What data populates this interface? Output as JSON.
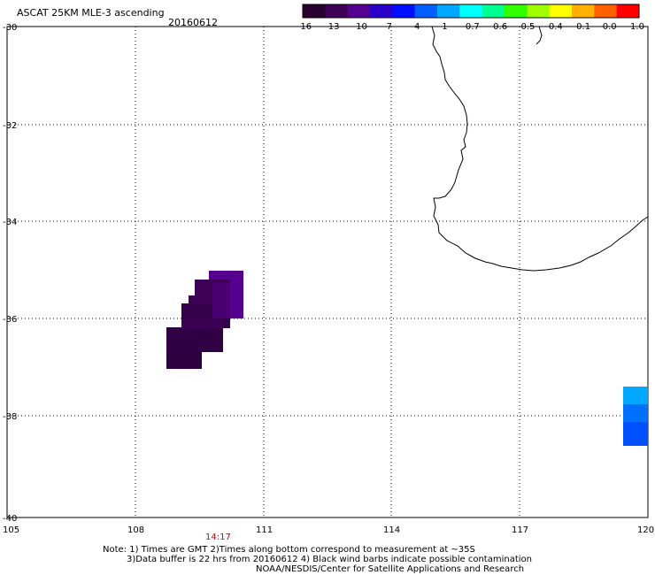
{
  "header": {
    "product": "ASCAT 25KM MLE-3 ascending",
    "date": "20160612"
  },
  "colorbar": {
    "labels": [
      "-16",
      "-13",
      "-10",
      "-7",
      "-4",
      "-1",
      "-0.7",
      "-0.6",
      "-0.5",
      "-0.4",
      "-0.1",
      "0.0",
      "1.0"
    ],
    "colors": [
      "#2a0030",
      "#3d0055",
      "#55008f",
      "#2a00c8",
      "#0010ff",
      "#0060ff",
      "#00a8ff",
      "#00ffff",
      "#00ff90",
      "#30ff00",
      "#a0ff00",
      "#ffff00",
      "#ffb000",
      "#ff6000",
      "#ff0000"
    ]
  },
  "map": {
    "lon_ticks": [
      "105",
      "108",
      "111",
      "114",
      "117",
      "120"
    ],
    "lat_ticks": [
      "-30",
      "-32",
      "-34",
      "-36",
      "-38",
      "-40"
    ],
    "time_label": "14:17",
    "time_color": "#cc0000"
  },
  "notes": {
    "line1": "Note: 1) Times are GMT 2)Times along bottom correspond to measurement at ~35S",
    "line2": "3)Data buffer is 22 hrs from 20160612 4) Black wind barbs indicate possible contamination",
    "line3": "NOAA/NESDIS/Center for Satellite Applications and Research"
  }
}
